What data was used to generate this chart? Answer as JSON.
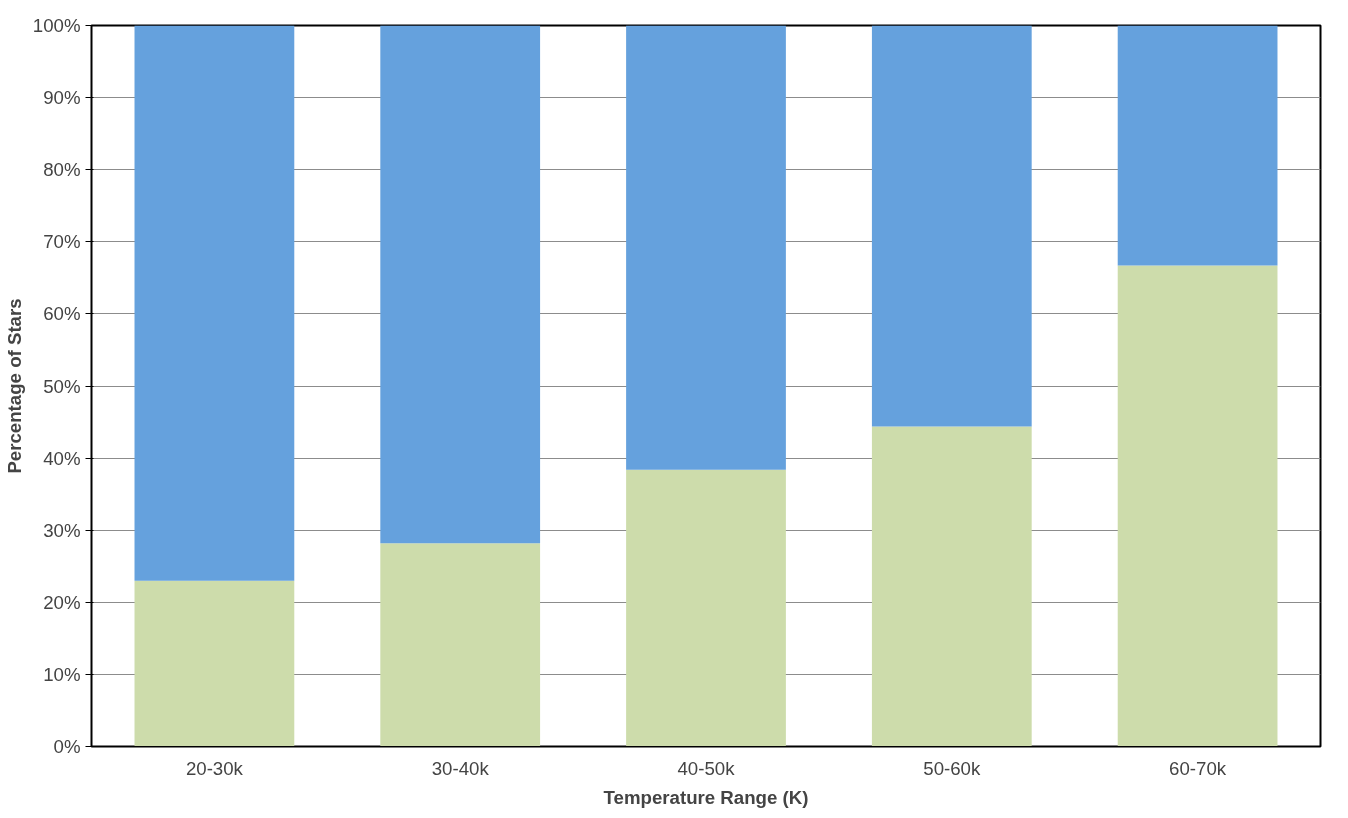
{
  "chart_data": {
    "type": "bar",
    "stacked": true,
    "xlabel": "Temperature Range (K)",
    "ylabel": "Percentage of Stars",
    "categories": [
      "20-30k",
      "30-40k",
      "40-50k",
      "50-60k",
      "60-70k"
    ],
    "series": [
      {
        "color": "#cddcab",
        "values": [
          23.0,
          28.2,
          38.4,
          44.4,
          66.7
        ]
      },
      {
        "color": "#65a1dd",
        "values": [
          77.0,
          71.8,
          61.6,
          55.6,
          33.3
        ]
      }
    ],
    "ylim": [
      0,
      100
    ],
    "yticks": [
      {
        "value": 0,
        "label": "0%"
      },
      {
        "value": 10,
        "label": "10%"
      },
      {
        "value": 20,
        "label": "20%"
      },
      {
        "value": 30,
        "label": "30%"
      },
      {
        "value": 40,
        "label": "40%"
      },
      {
        "value": 50,
        "label": "50%"
      },
      {
        "value": 60,
        "label": "60%"
      },
      {
        "value": 70,
        "label": "70%"
      },
      {
        "value": 80,
        "label": "80%"
      },
      {
        "value": 90,
        "label": "90%"
      },
      {
        "value": 100,
        "label": "100%"
      }
    ],
    "grid": "y"
  }
}
